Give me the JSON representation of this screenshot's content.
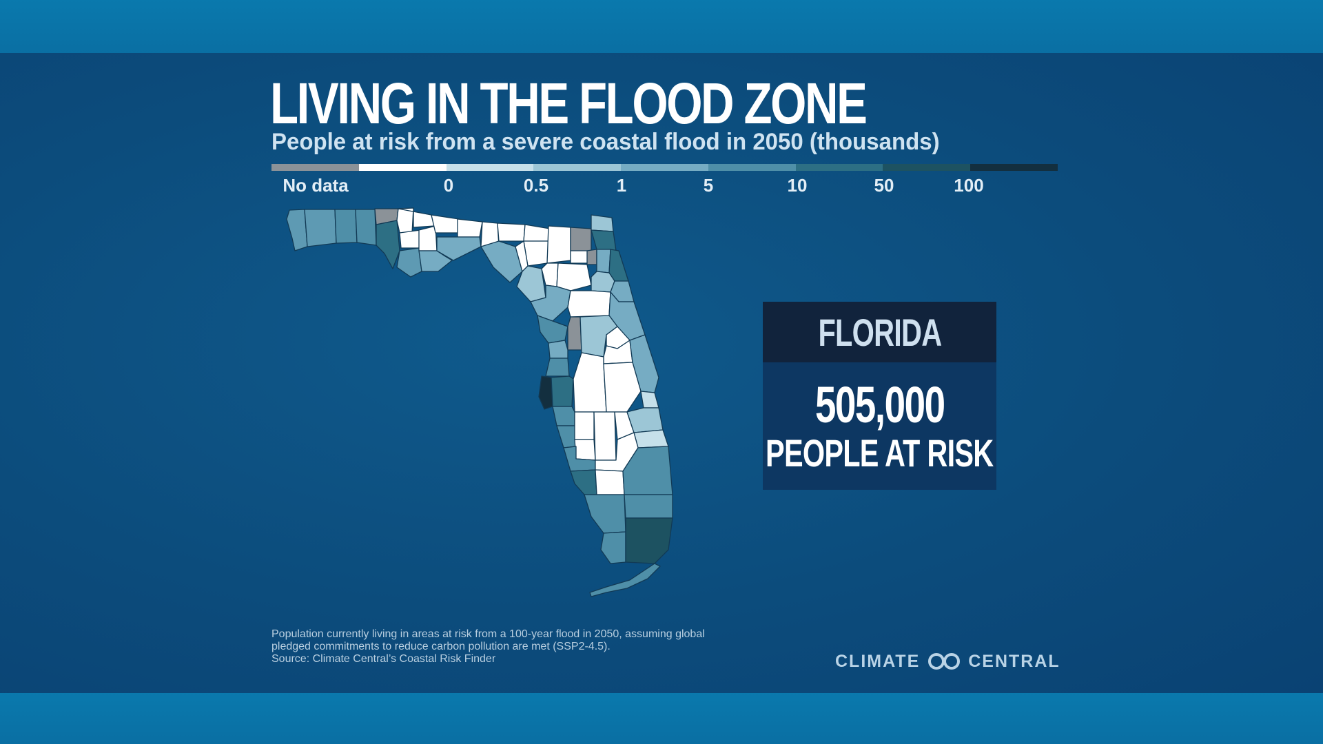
{
  "title": "LIVING IN THE FLOOD ZONE",
  "subtitle": "People at risk from a severe coastal flood in 2050 (thousands)",
  "legend": {
    "labels": [
      "No data",
      "0",
      "0.5",
      "1",
      "5",
      "10",
      "50",
      "100"
    ],
    "colors": [
      "#8b9298",
      "#ffffff",
      "#c6e0ea",
      "#9cc6d6",
      "#76acc3",
      "#4f8fa8",
      "#2d6f84",
      "#1d5261",
      "#132f3f"
    ]
  },
  "infobox": {
    "state": "FLORIDA",
    "number": "505,000",
    "label": "PEOPLE AT RISK"
  },
  "map": {
    "region": "Florida",
    "counties_shown": "county choropleth of people at risk"
  },
  "footnote": {
    "line1": "Population currently living in areas at risk from a 100-year flood in 2050, assuming global",
    "line2": "pledged commitments to reduce carbon pollution are met (SSP2-4.5).",
    "line3": "Source: Climate Central’s Coastal Risk Finder"
  },
  "brand": {
    "left": "CLIMATE",
    "right": "CENTRAL",
    "icon": "infinity-icon"
  }
}
